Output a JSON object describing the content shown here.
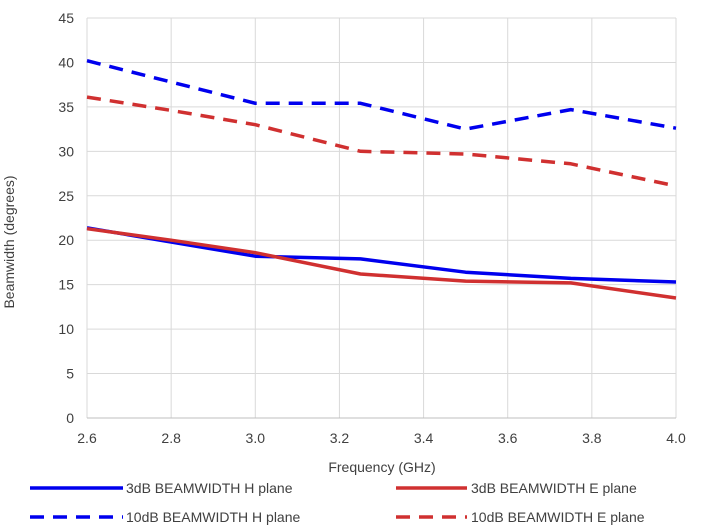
{
  "chart_data": {
    "type": "line",
    "title": "",
    "xlabel": "Frequency (GHz)",
    "ylabel": "Beamwidth (degrees)",
    "xlim": [
      2.6,
      4.0
    ],
    "ylim": [
      0,
      45
    ],
    "x_ticks": [
      "2.6",
      "2.8",
      "3.0",
      "3.2",
      "3.4",
      "3.6",
      "3.8",
      "4.0"
    ],
    "y_ticks": [
      "0",
      "5",
      "10",
      "15",
      "20",
      "25",
      "30",
      "35",
      "40",
      "45"
    ],
    "grid": true,
    "legend_position": "bottom",
    "series": [
      {
        "name": "3dB BEAMWIDTH H plane",
        "color": "#0000ee",
        "dash": "solid",
        "x": [
          2.6,
          2.8,
          3.0,
          3.25,
          3.5,
          3.75,
          4.0
        ],
        "y": [
          21.4,
          19.8,
          18.2,
          17.9,
          16.4,
          15.7,
          15.3
        ]
      },
      {
        "name": "3dB BEAMWIDTH E plane",
        "color": "#d03030",
        "dash": "solid",
        "x": [
          2.6,
          2.8,
          3.0,
          3.25,
          3.5,
          3.75,
          4.0
        ],
        "y": [
          21.3,
          20.0,
          18.6,
          16.2,
          15.4,
          15.2,
          13.5
        ]
      },
      {
        "name": "10dB BEAMWIDTH H plane",
        "color": "#0000ee",
        "dash": "dashed",
        "x": [
          2.6,
          2.8,
          3.0,
          3.25,
          3.5,
          3.75,
          4.0
        ],
        "y": [
          40.2,
          37.8,
          35.4,
          35.4,
          32.5,
          34.7,
          32.6
        ]
      },
      {
        "name": "10dB BEAMWIDTH E plane",
        "color": "#d03030",
        "dash": "dashed",
        "x": [
          2.6,
          2.8,
          3.0,
          3.25,
          3.5,
          3.75,
          4.0
        ],
        "y": [
          36.1,
          34.6,
          33.0,
          30.0,
          29.7,
          28.6,
          26.1
        ]
      }
    ]
  }
}
